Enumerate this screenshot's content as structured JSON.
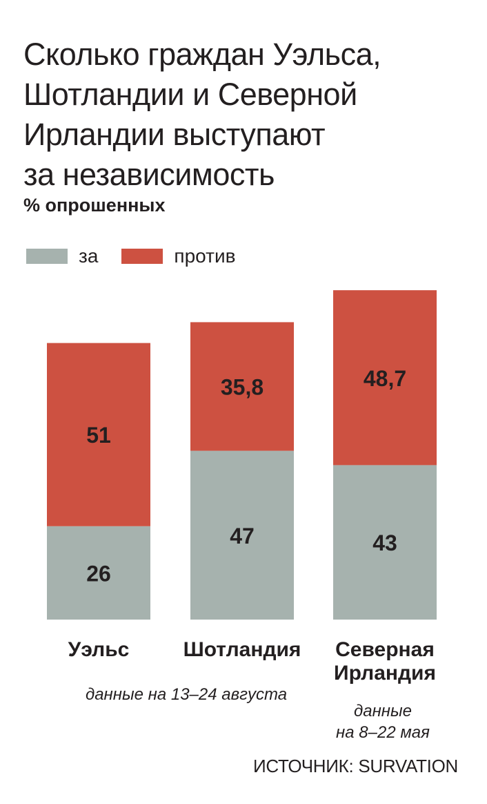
{
  "title_lines": [
    "Сколько граждан Уэльса,",
    "Шотландии и Северной",
    "Ирландии выступают",
    "за независимость"
  ],
  "subtitle": "% опрошенных",
  "legend": [
    {
      "label": "за",
      "color": "#a6b2ae"
    },
    {
      "label": "против",
      "color": "#cd5141"
    }
  ],
  "notes": {
    "wales_scotland": "данные на 13–24 августа",
    "ni_line1": "данные",
    "ni_line2": "на 8–22 мая"
  },
  "source": "ИСТОЧНИК: SURVATION",
  "chart_data": {
    "type": "bar",
    "stacked": true,
    "categories": [
      [
        "Уэльс"
      ],
      [
        "Шотландия"
      ],
      [
        "Северная",
        "Ирландия"
      ]
    ],
    "series": [
      {
        "name": "за",
        "color": "#a6b2ae",
        "values": [
          26,
          47,
          43
        ],
        "labels": [
          "26",
          "47",
          "43"
        ]
      },
      {
        "name": "против",
        "color": "#cd5141",
        "values": [
          51,
          35.8,
          48.7
        ],
        "labels": [
          "51",
          "35,8",
          "48,7"
        ]
      }
    ],
    "title": "Сколько граждан Уэльса, Шотландии и Северной Ирландии выступают за независимость",
    "subtitle": "% опрошенных",
    "grid": false,
    "axes_visible": false,
    "legend_position": "top-left"
  }
}
